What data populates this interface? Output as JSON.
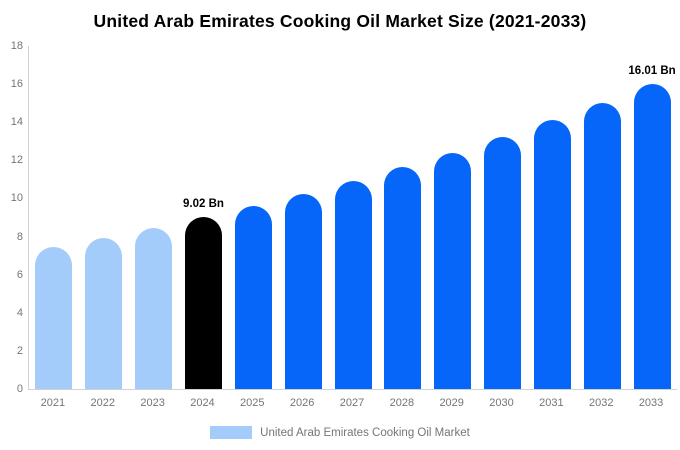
{
  "title": "United Arab Emirates Cooking Oil Market Size (2021-2033)",
  "colors": {
    "historical_bar": "#a4ccfb",
    "highlight_bar": "#000000",
    "forecast_bar": "#0666fa",
    "axis_line": "#d2d2d2",
    "tick_text": "#757575",
    "title_text": "#000000",
    "annotation_text": "#000000",
    "background": "#ffffff"
  },
  "legend": {
    "label": "United Arab Emirates Cooking Oil Market",
    "swatch_color": "#a4ccfb"
  },
  "chart_data": {
    "type": "bar",
    "title": "United Arab Emirates Cooking Oil Market Size (2021-2033)",
    "categories": [
      "2021",
      "2022",
      "2023",
      "2024",
      "2025",
      "2026",
      "2027",
      "2028",
      "2029",
      "2030",
      "2031",
      "2032",
      "2033"
    ],
    "values": [
      7.45,
      7.94,
      8.46,
      9.02,
      9.61,
      10.25,
      10.92,
      11.64,
      12.41,
      13.23,
      14.1,
      15.02,
      16.01
    ],
    "bar_colors": [
      "#a4ccfb",
      "#a4ccfb",
      "#a4ccfb",
      "#000000",
      "#0666fa",
      "#0666fa",
      "#0666fa",
      "#0666fa",
      "#0666fa",
      "#0666fa",
      "#0666fa",
      "#0666fa",
      "#0666fa"
    ],
    "annotations": [
      {
        "category": "2024",
        "text": "9.02 Bn"
      },
      {
        "category": "2033",
        "text": "16.01 Bn"
      }
    ],
    "xlabel": "",
    "ylabel": "",
    "ylim": [
      0,
      18
    ],
    "yticks": [
      0,
      2,
      4,
      6,
      8,
      10,
      12,
      14,
      16,
      18
    ],
    "grid": false,
    "legend_position": "bottom",
    "unit": "Bn"
  }
}
